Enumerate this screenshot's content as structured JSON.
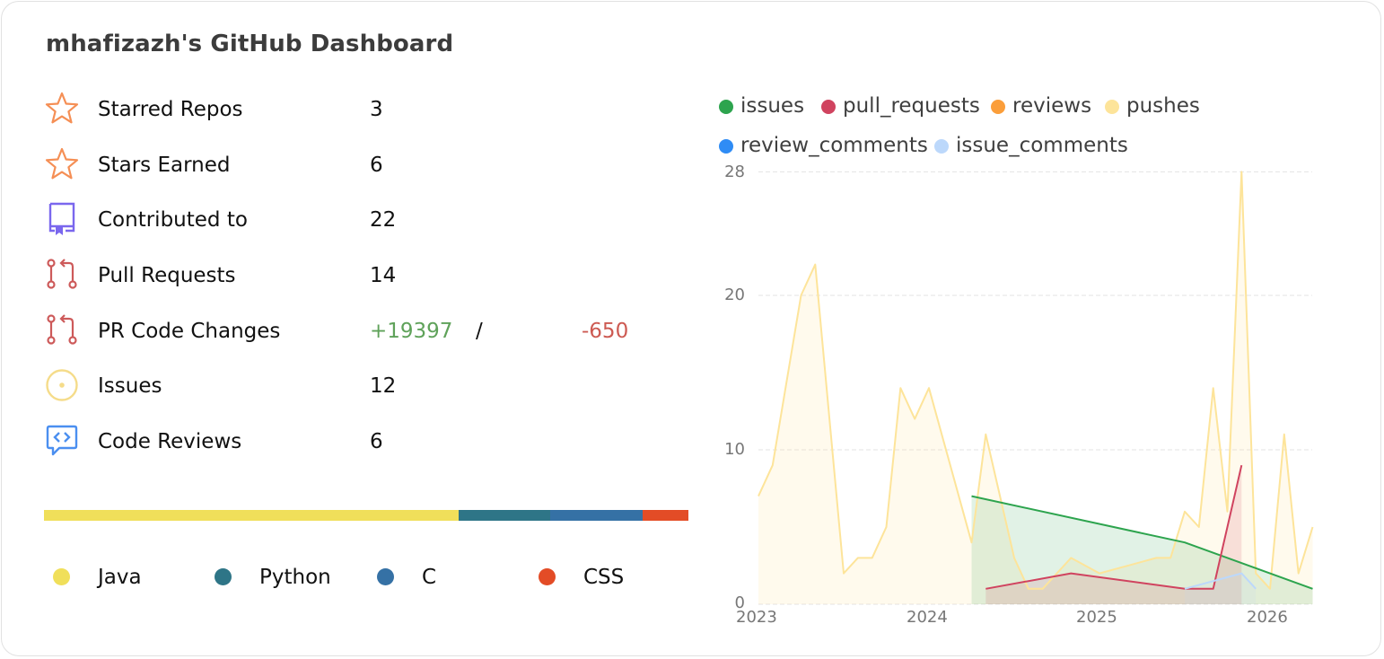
{
  "header": {
    "title": "mhafizazh's GitHub Dashboard"
  },
  "stats": [
    {
      "icon": "star-icon",
      "label": "Starred Repos",
      "value": "3",
      "color": "#f58f55"
    },
    {
      "icon": "star-icon",
      "label": "Stars Earned",
      "value": "6",
      "color": "#f58f55"
    },
    {
      "icon": "repo-book-icon",
      "label": "Contributed to",
      "value": "22",
      "color": "#7a67ee"
    },
    {
      "icon": "pull-request-icon",
      "label": "Pull Requests",
      "value": "14",
      "color": "#cd5a5a"
    },
    {
      "icon": "pull-request-icon",
      "label": "PR Code Changes",
      "additions": "+19397",
      "separator": "/",
      "deletions": "-650",
      "color": "#cd5a5a"
    },
    {
      "icon": "issue-circle-icon",
      "label": "Issues",
      "value": "12",
      "color": "#f5dc8a"
    },
    {
      "icon": "code-review-icon",
      "label": "Code Reviews",
      "value": "6",
      "color": "#4b8ff0"
    }
  ],
  "languages": [
    {
      "name": "Java",
      "color": "#f0df5a",
      "share": 64.4
    },
    {
      "name": "Python",
      "color": "#2e7587",
      "share": 14.2
    },
    {
      "name": "C",
      "color": "#3571a5",
      "share": 14.3
    },
    {
      "name": "CSS",
      "color": "#e34c26",
      "share": 7.1
    }
  ],
  "chart_data": {
    "type": "area",
    "title": "",
    "xlabel": "",
    "ylabel": "",
    "ylim": [
      0,
      28
    ],
    "yticks": [
      "0",
      "10",
      "20",
      "28"
    ],
    "xticks": [
      "2023",
      "2024",
      "2025",
      "2026"
    ],
    "grid": true,
    "legend_position": "top",
    "series": [
      {
        "name": "issues",
        "color": "#2da44e",
        "points": [
          [
            "2024-04",
            7
          ],
          [
            "2025-07",
            4
          ],
          [
            "2026-04",
            1
          ]
        ]
      },
      {
        "name": "pull_requests",
        "color": "#d0435f",
        "points": [
          [
            "2024-05",
            1
          ],
          [
            "2024-11",
            2
          ],
          [
            "2025-07",
            1
          ],
          [
            "2025-09",
            1
          ],
          [
            "2025-11",
            9
          ]
        ]
      },
      {
        "name": "reviews",
        "color": "#fb9e3a",
        "points": []
      },
      {
        "name": "pushes",
        "color": "#fde49a",
        "points": [
          [
            "2023-01",
            7
          ],
          [
            "2023-02",
            9
          ],
          [
            "2023-04",
            20
          ],
          [
            "2023-05",
            22
          ],
          [
            "2023-07",
            2
          ],
          [
            "2023-08",
            3
          ],
          [
            "2023-09",
            3
          ],
          [
            "2023-10",
            5
          ],
          [
            "2023-11",
            14
          ],
          [
            "2023-12",
            12
          ],
          [
            "2024-01",
            14
          ],
          [
            "2024-04",
            4
          ],
          [
            "2024-05",
            11
          ],
          [
            "2024-07",
            3
          ],
          [
            "2024-08",
            1
          ],
          [
            "2024-09",
            1
          ],
          [
            "2024-11",
            3
          ],
          [
            "2025-01",
            2
          ],
          [
            "2025-05",
            3
          ],
          [
            "2025-06",
            3
          ],
          [
            "2025-07",
            6
          ],
          [
            "2025-08",
            5
          ],
          [
            "2025-09",
            14
          ],
          [
            "2025-10",
            6
          ],
          [
            "2025-11",
            28
          ],
          [
            "2025-12",
            2
          ],
          [
            "2026-01",
            1
          ],
          [
            "2026-02",
            11
          ],
          [
            "2026-03",
            2
          ],
          [
            "2026-04",
            5
          ]
        ]
      },
      {
        "name": "review_comments",
        "color": "#2f8cf5",
        "points": []
      },
      {
        "name": "issue_comments",
        "color": "#bcd8fb",
        "points": [
          [
            "2025-07",
            1
          ],
          [
            "2025-11",
            2
          ],
          [
            "2025-12",
            1
          ]
        ]
      }
    ]
  }
}
